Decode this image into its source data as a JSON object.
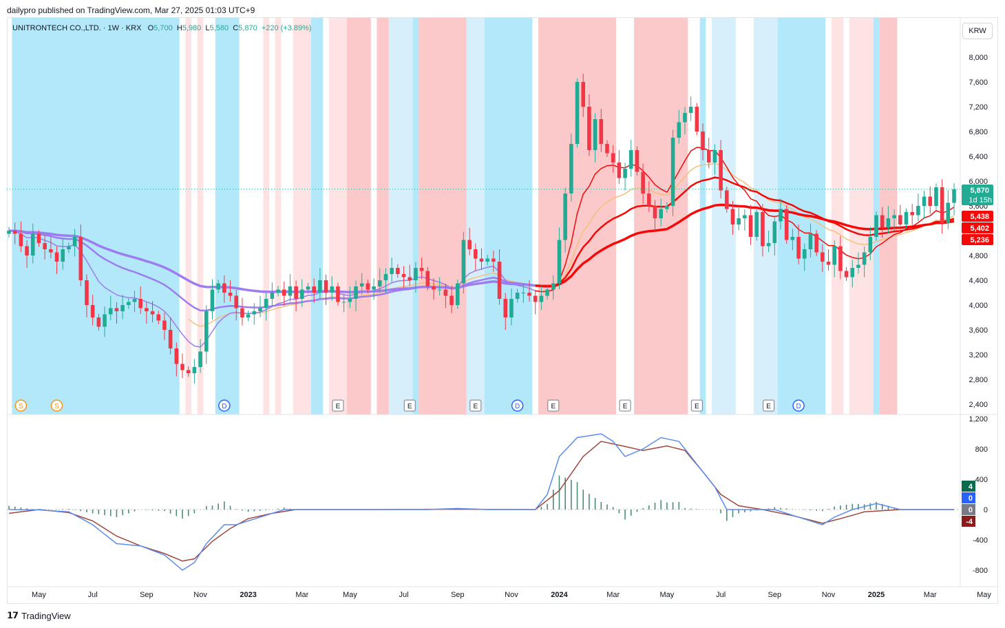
{
  "header": {
    "publisher": "dailypro published on TradingView.com, Mar 27, 2025 01:03 UTC+9",
    "symbol": "UNITRONTECH CO.,LTD. · 1W · KRX",
    "open_label": "O",
    "open": "5,700",
    "high_label": "H",
    "high": "5,980",
    "low_label": "L",
    "low": "5,580",
    "close_label": "C",
    "close": "5,870",
    "change": "+220 (+3.89%)",
    "currency": "KRW"
  },
  "brand": "TradingView",
  "colors": {
    "up": "#22ab94",
    "down": "#f23645",
    "bg_blue": "#b3e8fb",
    "bg_red": "#fbc9c9",
    "ma_purple": "#9c7cf0",
    "ma_red": "#f50808",
    "ma_orange": "#f4c07b",
    "macd": "#5b8cf0",
    "signal": "#a0463c",
    "hist": "#4c8b78"
  },
  "chart_data": [
    {
      "type": "candlestick",
      "title": "UNITRONTECH CO.,LTD. · 1W · KRX",
      "ylim": [
        2200,
        8400
      ],
      "yticks": [
        8000,
        7600,
        7200,
        6800,
        6400,
        6000,
        5600,
        5200,
        4800,
        4400,
        4000,
        3600,
        3200,
        2800,
        2400
      ],
      "ytick_labels": [
        "8,000",
        "7,600",
        "7,200",
        "6,800",
        "6,400",
        "6,000",
        "5,600",
        "5,200",
        "4,800",
        "4,400",
        "4,000",
        "3,600",
        "3,200",
        "2,800",
        "2,400"
      ],
      "x_labels": [
        "May",
        "Jul",
        "Sep",
        "Nov",
        "2023",
        "Mar",
        "May",
        "Jul",
        "Sep",
        "Nov",
        "2024",
        "Mar",
        "May",
        "Jul",
        "Sep",
        "Nov",
        "2025",
        "Mar",
        "May"
      ],
      "x_label_weeks": [
        5,
        14,
        23,
        32,
        40,
        49,
        57,
        66,
        75,
        84,
        92,
        101,
        110,
        119,
        128,
        137,
        145,
        154,
        163
      ],
      "start_week_label": "Mar 2022 (week 0)",
      "closes": [
        5200,
        5150,
        4950,
        4800,
        5150,
        5000,
        4900,
        4850,
        4700,
        4900,
        4950,
        5100,
        4400,
        4000,
        3800,
        3650,
        3850,
        3950,
        3900,
        4000,
        4050,
        4100,
        3950,
        3900,
        3850,
        3750,
        3600,
        3300,
        3050,
        2950,
        2900,
        3000,
        3250,
        3900,
        4250,
        4350,
        4200,
        4150,
        3950,
        3800,
        3850,
        3900,
        3950,
        4100,
        4200,
        4250,
        4150,
        4300,
        4100,
        4250,
        4300,
        4200,
        4400,
        4200,
        4300,
        4050,
        4050,
        4100,
        4300,
        4350,
        4250,
        4300,
        4400,
        4500,
        4600,
        4500,
        4450,
        4400,
        4600,
        4550,
        4300,
        4250,
        4250,
        4150,
        4000,
        4350,
        5050,
        4900,
        4750,
        4700,
        4750,
        4700,
        4100,
        3800,
        4100,
        4200,
        4200,
        4150,
        4050,
        4150,
        4250,
        4350,
        5050,
        5800,
        6600,
        7600,
        7200,
        6500,
        7000,
        6600,
        6450,
        6300,
        6050,
        6200,
        6500,
        6150,
        5800,
        5600,
        5400,
        5550,
        5600,
        6700,
        6950,
        7100,
        7200,
        6800,
        6500,
        6300,
        6500,
        5850,
        5550,
        5300,
        5400,
        5450,
        5100,
        5500,
        4950,
        5000,
        5350,
        5550,
        5050,
        5100,
        4750,
        4900,
        5150,
        4850,
        4700,
        4650,
        4950,
        4550,
        4450,
        4600,
        4650,
        4850,
        5100,
        5450,
        5250,
        5400,
        5450,
        5300,
        5500,
        5450,
        5600,
        5750,
        5600,
        5900,
        5320,
        5650,
        5870
      ],
      "series_names": [
        "MA (purple)",
        "MA (red)",
        "MA (orange)"
      ],
      "current_price_label": "5,870",
      "countdown": "1d 15h",
      "ma_value_labels": [
        "5,438",
        "5,402",
        "5,236"
      ],
      "event_markers": [
        {
          "label": "S",
          "week": 2
        },
        {
          "label": "S",
          "week": 8
        },
        {
          "label": "D",
          "week": 36
        },
        {
          "label": "E",
          "week": 55
        },
        {
          "label": "E",
          "week": 67
        },
        {
          "label": "E",
          "week": 78
        },
        {
          "label": "D",
          "week": 85
        },
        {
          "label": "E",
          "week": 91
        },
        {
          "label": "E",
          "week": 103
        },
        {
          "label": "E",
          "week": 115
        },
        {
          "label": "E",
          "week": 127
        },
        {
          "label": "D",
          "week": 132
        }
      ],
      "background_zones": [
        {
          "from": 1,
          "to": 29,
          "color": "blue"
        },
        {
          "from": 30,
          "to": 31,
          "color": "lightred"
        },
        {
          "from": 32,
          "to": 33,
          "color": "lightred"
        },
        {
          "from": 35,
          "to": 39,
          "color": "blue"
        },
        {
          "from": 43,
          "to": 44,
          "color": "lightred"
        },
        {
          "from": 45,
          "to": 46,
          "color": "lightred"
        },
        {
          "from": 48,
          "to": 51,
          "color": "lightred"
        },
        {
          "from": 51,
          "to": 53,
          "color": "blue"
        },
        {
          "from": 54,
          "to": 57,
          "color": "lightred"
        },
        {
          "from": 57,
          "to": 61,
          "color": "red"
        },
        {
          "from": 62,
          "to": 64,
          "color": "red"
        },
        {
          "from": 64,
          "to": 68,
          "color": "lightblue"
        },
        {
          "from": 68,
          "to": 69,
          "color": "blue"
        },
        {
          "from": 69,
          "to": 77,
          "color": "red"
        },
        {
          "from": 77,
          "to": 80,
          "color": "lightblue"
        },
        {
          "from": 80,
          "to": 88,
          "color": "blue"
        },
        {
          "from": 89,
          "to": 102,
          "color": "red"
        },
        {
          "from": 105,
          "to": 114,
          "color": "red"
        },
        {
          "from": 116,
          "to": 117,
          "color": "blue"
        },
        {
          "from": 118,
          "to": 122,
          "color": "lightblue"
        },
        {
          "from": 125,
          "to": 129,
          "color": "lightblue"
        },
        {
          "from": 129,
          "to": 137,
          "color": "blue"
        },
        {
          "from": 138,
          "to": 140,
          "color": "lightred"
        },
        {
          "from": 141,
          "to": 145,
          "color": "lightred"
        },
        {
          "from": 145,
          "to": 146,
          "color": "blue"
        },
        {
          "from": 146,
          "to": 149,
          "color": "red"
        }
      ]
    },
    {
      "type": "line",
      "title": "",
      "ylim": [
        -950,
        1220
      ],
      "yticks": [
        1200,
        800,
        400,
        0,
        -400,
        -800
      ],
      "ytick_labels": [
        "1,200",
        "800",
        "400",
        "0",
        "-400",
        "-800"
      ],
      "series_names": [
        "MACD",
        "Signal",
        "Histogram"
      ],
      "macd_keyframes": [
        [
          0,
          0
        ],
        [
          5,
          -5
        ],
        [
          10,
          -30
        ],
        [
          14,
          -200
        ],
        [
          18,
          -450
        ],
        [
          22,
          -480
        ],
        [
          26,
          -600
        ],
        [
          29,
          -800
        ],
        [
          31,
          -700
        ],
        [
          33,
          -450
        ],
        [
          36,
          -200
        ],
        [
          38,
          -200
        ],
        [
          42,
          -100
        ],
        [
          46,
          0
        ],
        [
          50,
          0
        ],
        [
          60,
          0
        ],
        [
          70,
          0
        ],
        [
          75,
          15
        ],
        [
          80,
          0
        ],
        [
          88,
          0
        ],
        [
          90,
          200
        ],
        [
          92,
          700
        ],
        [
          95,
          950
        ],
        [
          99,
          1000
        ],
        [
          101,
          900
        ],
        [
          103,
          700
        ],
        [
          106,
          800
        ],
        [
          109,
          950
        ],
        [
          112,
          900
        ],
        [
          114,
          700
        ],
        [
          118,
          300
        ],
        [
          120,
          0
        ],
        [
          128,
          0
        ],
        [
          132,
          -100
        ],
        [
          136,
          -200
        ],
        [
          138,
          -100
        ],
        [
          141,
          0
        ],
        [
          145,
          80
        ],
        [
          149,
          0
        ]
      ],
      "signal_keyframes": [
        [
          0,
          -50
        ],
        [
          5,
          0
        ],
        [
          10,
          -40
        ],
        [
          14,
          -150
        ],
        [
          18,
          -350
        ],
        [
          22,
          -480
        ],
        [
          26,
          -580
        ],
        [
          29,
          -680
        ],
        [
          31,
          -650
        ],
        [
          34,
          -420
        ],
        [
          37,
          -250
        ],
        [
          40,
          -120
        ],
        [
          44,
          -50
        ],
        [
          48,
          0
        ],
        [
          60,
          0
        ],
        [
          75,
          5
        ],
        [
          88,
          0
        ],
        [
          92,
          250
        ],
        [
          96,
          700
        ],
        [
          99,
          900
        ],
        [
          102,
          850
        ],
        [
          106,
          780
        ],
        [
          110,
          840
        ],
        [
          113,
          780
        ],
        [
          116,
          500
        ],
        [
          119,
          200
        ],
        [
          122,
          50
        ],
        [
          126,
          0
        ],
        [
          131,
          -80
        ],
        [
          136,
          -180
        ],
        [
          139,
          -120
        ],
        [
          143,
          -30
        ],
        [
          149,
          0
        ]
      ],
      "value_labels": [
        "4",
        "0",
        "0",
        "-4"
      ]
    }
  ]
}
